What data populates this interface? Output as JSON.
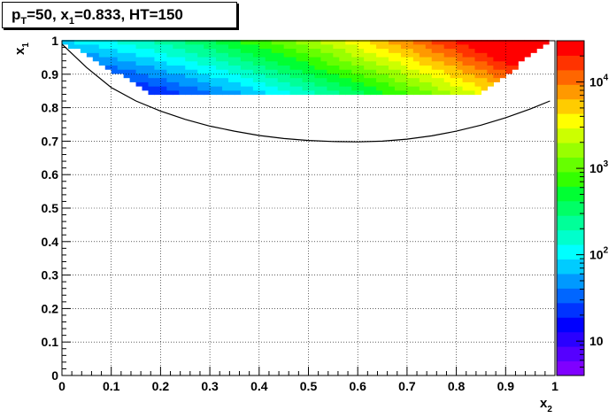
{
  "title": {
    "p": "p",
    "p_sub": "T",
    "p_rest": "=50, x",
    "x_sub": "1",
    "x_rest": "=0.833, HT=150"
  },
  "chart_data": {
    "type": "heatmap",
    "title": "p_T=50, x_1=0.833, HT=150",
    "xlabel": "x2",
    "ylabel": "x1",
    "xlim": [
      0,
      1
    ],
    "ylim": [
      0,
      1
    ],
    "x_ticks": [
      "0",
      "0.1",
      "0.2",
      "0.3",
      "0.4",
      "0.5",
      "0.6",
      "0.7",
      "0.8",
      "0.9",
      "1"
    ],
    "y_ticks": [
      "0",
      "0.1",
      "0.2",
      "0.3",
      "0.4",
      "0.5",
      "0.6",
      "0.7",
      "0.8",
      "0.9",
      "1"
    ],
    "grid": true,
    "z_scale": "log",
    "z_range": [
      4,
      30000
    ],
    "palette": [
      "#7f00ff",
      "#5500ff",
      "#2a00ff",
      "#0000ff",
      "#0033ff",
      "#0066ff",
      "#0099ff",
      "#00ccff",
      "#00ffff",
      "#00ffcc",
      "#00ff99",
      "#00ff66",
      "#00ff33",
      "#33ff00",
      "#66ff00",
      "#99ff00",
      "#ccff00",
      "#ffff00",
      "#ffcc00",
      "#ff9900",
      "#ff6600",
      "#ff3300",
      "#ff0000"
    ],
    "colorbar_ticks": [
      {
        "value": 10,
        "base": "10",
        "exp": ""
      },
      {
        "value": 100,
        "base": "10",
        "exp": "2"
      },
      {
        "value": 1000,
        "base": "10",
        "exp": "3"
      },
      {
        "value": 10000,
        "base": "10",
        "exp": "4"
      }
    ],
    "heatmap": {
      "x_bin_width": 0.0125,
      "y_bin_width": 0.0125,
      "y_min": 0.84,
      "y_max": 1.0
    },
    "curve": [
      [
        0.0,
        0.99
      ],
      [
        0.05,
        0.92
      ],
      [
        0.1,
        0.86
      ],
      [
        0.15,
        0.82
      ],
      [
        0.2,
        0.79
      ],
      [
        0.25,
        0.765
      ],
      [
        0.3,
        0.745
      ],
      [
        0.35,
        0.73
      ],
      [
        0.4,
        0.717
      ],
      [
        0.45,
        0.708
      ],
      [
        0.5,
        0.702
      ],
      [
        0.55,
        0.699
      ],
      [
        0.6,
        0.698
      ],
      [
        0.65,
        0.7
      ],
      [
        0.7,
        0.706
      ],
      [
        0.75,
        0.716
      ],
      [
        0.8,
        0.73
      ],
      [
        0.85,
        0.748
      ],
      [
        0.9,
        0.77
      ],
      [
        0.95,
        0.796
      ],
      [
        0.99,
        0.82
      ]
    ],
    "axis_label_x": {
      "base": "x",
      "sub": "2"
    },
    "axis_label_y": {
      "base": "x",
      "sub": "1"
    }
  }
}
